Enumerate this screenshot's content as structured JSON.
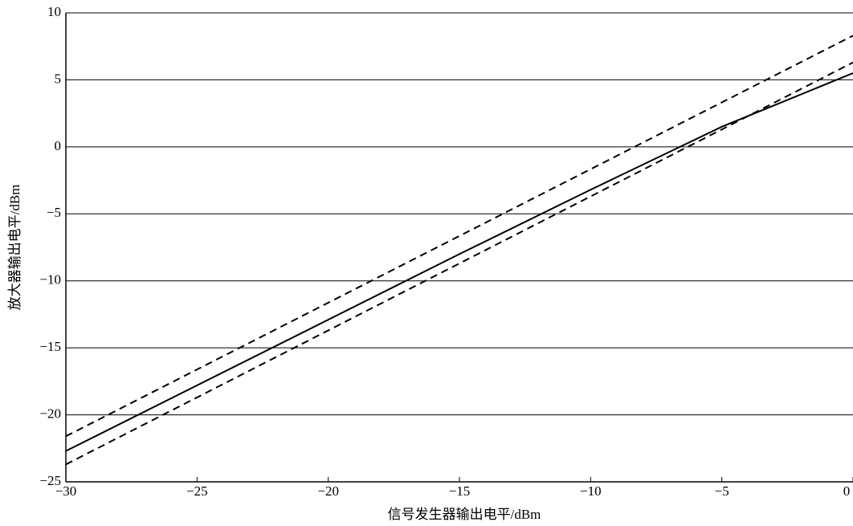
{
  "chart_data": {
    "type": "line",
    "x_label": "信号发生器输出电平/dBm",
    "y_label": "放大器输出电平/dBm",
    "grid": true,
    "xlim": [
      -30,
      0
    ],
    "ylim": [
      -25,
      10
    ],
    "xticks": [
      {
        "value": -30,
        "label": "−30"
      },
      {
        "value": -25,
        "label": "−25"
      },
      {
        "value": -20,
        "label": "−20"
      },
      {
        "value": -15,
        "label": "−15"
      },
      {
        "value": -10,
        "label": "−10"
      },
      {
        "value": -5,
        "label": "−5"
      },
      0
    ],
    "yticks": [
      {
        "value": -25,
        "label": "−25"
      },
      {
        "value": -20,
        "label": "−20"
      },
      {
        "value": -15,
        "label": "−15"
      },
      {
        "value": -10,
        "label": "−10"
      },
      {
        "value": -5,
        "label": "−5"
      },
      0,
      5,
      10
    ],
    "series": [
      {
        "color": "#000000",
        "dashed": false,
        "x": [
          -30,
          -25,
          -20,
          -15,
          -10,
          -5,
          0
        ],
        "values": [
          -22.7,
          -17.8,
          -12.9,
          -8.0,
          -3.2,
          1.5,
          5.5
        ]
      },
      {
        "color": "#000000",
        "dashed": true,
        "x": [
          -30,
          0
        ],
        "values": [
          -21.6,
          8.3
        ]
      },
      {
        "color": "#000000",
        "dashed": true,
        "x": [
          -30,
          0
        ],
        "values": [
          -23.7,
          6.3
        ]
      }
    ]
  }
}
